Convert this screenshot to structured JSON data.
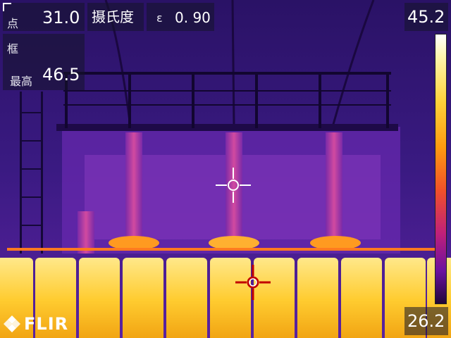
{
  "measurement": {
    "spot": {
      "label": "点",
      "value": "31.0"
    },
    "box": {
      "label": "框",
      "max_label": "最高",
      "max_value": "46.5"
    }
  },
  "unit_label": "摄氏度",
  "emissivity": {
    "symbol": "ε",
    "value": "0. 90"
  },
  "scale": {
    "max": "45.2",
    "min": "26.2"
  },
  "brand": {
    "name": "FLIR",
    "icon": "flir-logo-icon"
  },
  "colors": {
    "spot_marker": "#ffffff",
    "hot_marker": "#c00000",
    "palette": "iron"
  }
}
